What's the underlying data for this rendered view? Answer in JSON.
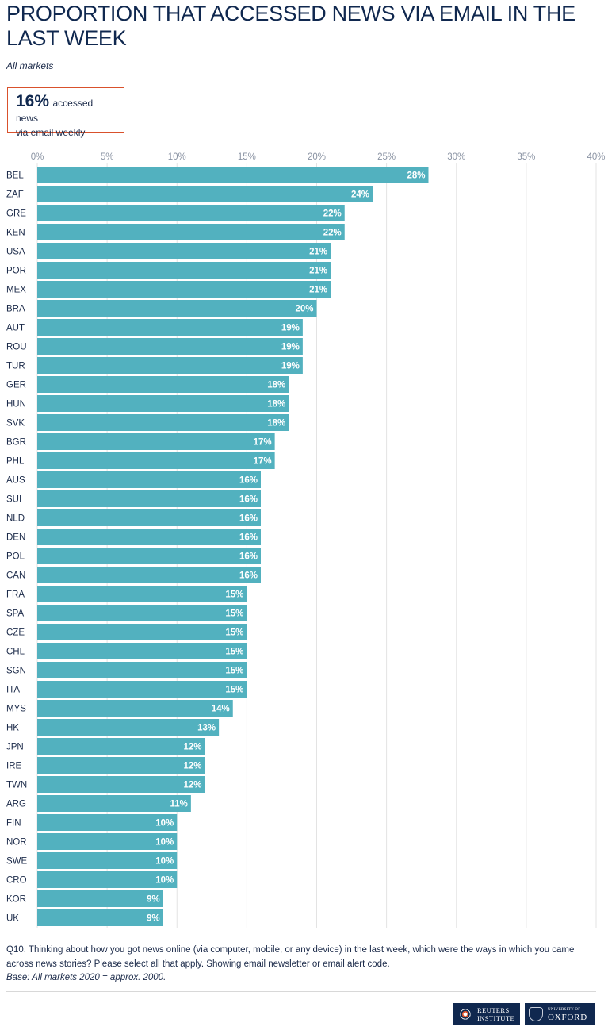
{
  "header": {
    "title": "PROPORTION THAT ACCESSED NEWS VIA EMAIL IN THE LAST WEEK",
    "subtitle": "All markets"
  },
  "callout": {
    "value": "16%",
    "text_line1": "accessed news",
    "text_line2": "via email weekly"
  },
  "footer": {
    "question": "Q10. Thinking about how you got news online (via computer, mobile, or any device) in the last week, which were the ways in which you came across news stories? Please select all that apply. Showing email newsletter or email alert code.",
    "base": "Base: All markets 2020 = approx. 2000.",
    "logo_reuters_line1": "REUTERS",
    "logo_reuters_line2": "INSTITUTE",
    "logo_oxford_line1": "UNIVERSITY OF",
    "logo_oxford_line2": "OXFORD"
  },
  "colors": {
    "bar": "#52b1bf",
    "title": "#10284f",
    "callout_border": "#d9512c",
    "gridline": "#e3e3e3",
    "logo_bg": "#10284f"
  },
  "chart_data": {
    "type": "bar",
    "orientation": "horizontal",
    "categories": [
      "BEL",
      "ZAF",
      "GRE",
      "KEN",
      "USA",
      "POR",
      "MEX",
      "BRA",
      "AUT",
      "ROU",
      "TUR",
      "GER",
      "HUN",
      "SVK",
      "BGR",
      "PHL",
      "AUS",
      "SUI",
      "NLD",
      "DEN",
      "POL",
      "CAN",
      "FRA",
      "SPA",
      "CZE",
      "CHL",
      "SGN",
      "ITA",
      "MYS",
      "HK",
      "JPN",
      "IRE",
      "TWN",
      "ARG",
      "FIN",
      "NOR",
      "SWE",
      "CRO",
      "KOR",
      "UK"
    ],
    "values": [
      28,
      24,
      22,
      22,
      21,
      21,
      21,
      20,
      19,
      19,
      19,
      18,
      18,
      18,
      17,
      17,
      16,
      16,
      16,
      16,
      16,
      16,
      15,
      15,
      15,
      15,
      15,
      15,
      14,
      13,
      12,
      12,
      12,
      11,
      10,
      10,
      10,
      10,
      9,
      9
    ],
    "value_suffix": "%",
    "xlim": [
      0,
      40
    ],
    "xticks": [
      0,
      5,
      10,
      15,
      20,
      25,
      30,
      35,
      40
    ],
    "xtick_suffix": "%",
    "axis_position": "top",
    "grid": true,
    "data_labels": "inside-end"
  }
}
